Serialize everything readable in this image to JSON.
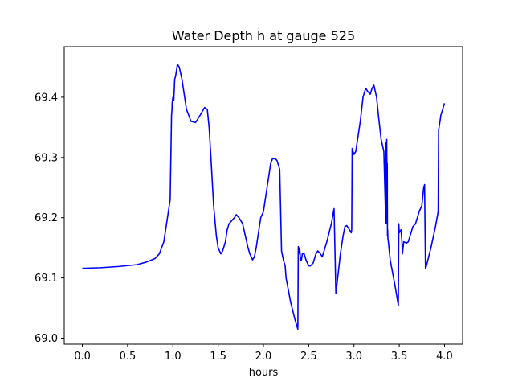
{
  "chart_data": {
    "type": "line",
    "title": "Water Depth h at gauge 525",
    "xlabel": "hours",
    "ylabel": "",
    "xlim": [
      -0.2,
      4.2
    ],
    "ylim": [
      68.99,
      69.484
    ],
    "xticks": [
      0.0,
      0.5,
      1.0,
      1.5,
      2.0,
      2.5,
      3.0,
      3.5,
      4.0
    ],
    "xtick_labels": [
      "0.0",
      "0.5",
      "1.0",
      "1.5",
      "2.0",
      "2.5",
      "3.0",
      "3.5",
      "4.0"
    ],
    "yticks": [
      69.0,
      69.1,
      69.2,
      69.3,
      69.4
    ],
    "ytick_labels": [
      "69.0",
      "69.1",
      "69.2",
      "69.3",
      "69.4"
    ],
    "grid": false,
    "legend": "none",
    "series": [
      {
        "color": "#0000ff",
        "x": [
          0.0,
          0.2,
          0.4,
          0.6,
          0.7,
          0.8,
          0.85,
          0.9,
          0.93,
          0.95,
          0.97,
          0.985,
          0.99,
          0.992,
          1.0,
          1.01,
          1.02,
          1.03,
          1.05,
          1.07,
          1.1,
          1.15,
          1.2,
          1.25,
          1.3,
          1.35,
          1.38,
          1.4,
          1.42,
          1.45,
          1.48,
          1.5,
          1.53,
          1.55,
          1.58,
          1.6,
          1.62,
          1.65,
          1.68,
          1.7,
          1.73,
          1.77,
          1.8,
          1.83,
          1.85,
          1.88,
          1.9,
          1.92,
          1.95,
          1.97,
          2.0,
          2.02,
          2.05,
          2.08,
          2.1,
          2.13,
          2.15,
          2.18,
          2.2,
          2.22,
          2.24,
          2.25,
          2.3,
          2.35,
          2.38,
          2.385,
          2.39,
          2.4,
          2.41,
          2.42,
          2.43,
          2.45,
          2.47,
          2.5,
          2.52,
          2.55,
          2.58,
          2.6,
          2.63,
          2.65,
          2.7,
          2.75,
          2.78,
          2.8,
          2.805,
          2.82,
          2.85,
          2.88,
          2.9,
          2.92,
          2.95,
          2.97,
          2.975,
          2.98,
          3.0,
          3.02,
          3.05,
          3.07,
          3.1,
          3.13,
          3.15,
          3.18,
          3.2,
          3.22,
          3.25,
          3.27,
          3.3,
          3.33,
          3.35,
          3.352,
          3.355,
          3.358,
          3.36,
          3.362,
          3.365,
          3.368,
          3.37,
          3.372,
          3.375,
          3.38,
          3.4,
          3.45,
          3.49,
          3.495,
          3.5,
          3.52,
          3.53,
          3.535,
          3.55,
          3.58,
          3.6,
          3.62,
          3.65,
          3.68,
          3.7,
          3.72,
          3.75,
          3.77,
          3.78,
          3.79,
          3.8,
          3.85,
          3.9,
          3.93,
          3.935,
          3.94,
          3.95,
          3.96,
          3.97,
          3.98,
          4.0
        ],
        "y": [
          69.116,
          69.117,
          69.119,
          69.122,
          69.126,
          69.132,
          69.14,
          69.16,
          69.19,
          69.21,
          69.23,
          69.37,
          69.38,
          69.39,
          69.4,
          69.395,
          69.43,
          69.435,
          69.455,
          69.45,
          69.43,
          69.38,
          69.36,
          69.358,
          69.37,
          69.383,
          69.38,
          69.35,
          69.3,
          69.22,
          69.17,
          69.15,
          69.14,
          69.145,
          69.16,
          69.18,
          69.19,
          69.195,
          69.2,
          69.205,
          69.2,
          69.19,
          69.17,
          69.15,
          69.14,
          69.13,
          69.135,
          69.15,
          69.18,
          69.2,
          69.21,
          69.23,
          69.26,
          69.29,
          69.298,
          69.298,
          69.295,
          69.28,
          69.145,
          69.13,
          69.12,
          69.1,
          69.06,
          69.03,
          69.015,
          69.152,
          69.14,
          69.15,
          69.13,
          69.13,
          69.14,
          69.14,
          69.13,
          69.12,
          69.12,
          69.125,
          69.14,
          69.145,
          69.14,
          69.135,
          69.16,
          69.19,
          69.215,
          69.075,
          69.08,
          69.1,
          69.14,
          69.17,
          69.185,
          69.187,
          69.18,
          69.175,
          69.18,
          69.315,
          69.305,
          69.31,
          69.34,
          69.36,
          69.4,
          69.415,
          69.41,
          69.405,
          69.415,
          69.42,
          69.4,
          69.37,
          69.33,
          69.31,
          69.2,
          69.325,
          69.19,
          69.315,
          69.2,
          69.33,
          69.25,
          69.29,
          69.17,
          69.18,
          69.165,
          69.16,
          69.13,
          69.09,
          69.055,
          69.19,
          69.175,
          69.18,
          69.16,
          69.14,
          69.16,
          69.158,
          69.16,
          69.17,
          69.185,
          69.19,
          69.2,
          69.21,
          69.22,
          69.25,
          69.255,
          69.115,
          69.12,
          69.15,
          69.185,
          69.21,
          69.345,
          69.35,
          69.36,
          69.37,
          69.375,
          69.38,
          69.39
        ]
      }
    ]
  }
}
